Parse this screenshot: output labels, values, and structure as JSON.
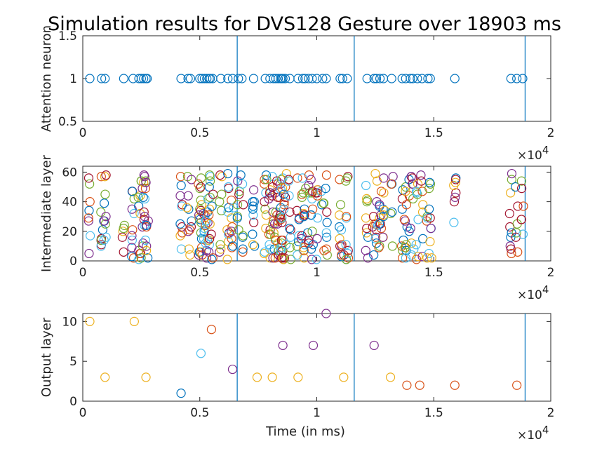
{
  "title": "Simulation results for DVS128 Gesture over 18903 ms",
  "palette": [
    "#0072BD",
    "#D95319",
    "#EDB120",
    "#7E2F8E",
    "#77AC30",
    "#4DBEEE",
    "#A2142F"
  ],
  "chart_data": [
    {
      "type": "scatter",
      "ylabel": "Attention neuron",
      "xlabel": "",
      "xlim": [
        0,
        20000
      ],
      "ylim": [
        0.5,
        1.5
      ],
      "x_ticks": [
        "0",
        "0.5",
        "1",
        "1.5",
        "2"
      ],
      "y_ticks": [
        "0.5",
        "1",
        "1.5"
      ],
      "x_exponent": "×10",
      "x_exponent_power": "4",
      "vlines": [
        6600,
        11600,
        18903
      ],
      "series": [
        {
          "color": "#0072BD",
          "x": [
            300,
            800,
            950,
            1750,
            2150,
            2400,
            2500,
            2600,
            2700,
            2750,
            4200,
            4500,
            4600,
            5000,
            5100,
            5200,
            5300,
            5400,
            5450,
            5550,
            5900,
            6200,
            6400,
            6650,
            6800,
            7300,
            7800,
            8000,
            8150,
            8250,
            8350,
            8450,
            8500,
            8550,
            8650,
            8850,
            9200,
            9400,
            9500,
            9650,
            9800,
            10000,
            10250,
            10400,
            11000,
            11100,
            11300,
            12150,
            12450,
            12550,
            12700,
            12850,
            13200,
            13650,
            13800,
            14000,
            14100,
            14300,
            14500,
            14750,
            14850,
            15900,
            18300,
            18550,
            18800
          ],
          "y": [
            1,
            1,
            1,
            1,
            1,
            1,
            1,
            1,
            1,
            1,
            1,
            1,
            1,
            1,
            1,
            1,
            1,
            1,
            1,
            1,
            1,
            1,
            1,
            1,
            1,
            1,
            1,
            1,
            1,
            1,
            1,
            1,
            1,
            1,
            1,
            1,
            1,
            1,
            1,
            1,
            1,
            1,
            1,
            1,
            1,
            1,
            1,
            1,
            1,
            1,
            1,
            1,
            1,
            1,
            1,
            1,
            1,
            1,
            1,
            1,
            1,
            1,
            1,
            1,
            1
          ]
        }
      ]
    },
    {
      "type": "scatter",
      "ylabel": "Intermediate layer",
      "xlabel": "",
      "xlim": [
        0,
        20000
      ],
      "ylim": [
        0,
        64
      ],
      "x_ticks": [
        "0",
        "0.5",
        "1",
        "1.5",
        "2"
      ],
      "y_ticks": [
        "0",
        "20",
        "40",
        "60"
      ],
      "x_exponent": "×10",
      "x_exponent_power": "4",
      "vlines": [
        6600,
        11600,
        18903
      ],
      "x": [
        300,
        800,
        950,
        1750,
        2150,
        2400,
        2500,
        2600,
        2700,
        2750,
        4200,
        4500,
        4600,
        5000,
        5100,
        5200,
        5300,
        5400,
        5450,
        5550,
        5900,
        6200,
        6400,
        6650,
        6800,
        7300,
        7800,
        8000,
        8150,
        8250,
        8350,
        8450,
        8500,
        8550,
        8650,
        8850,
        9200,
        9400,
        9500,
        9650,
        9800,
        10000,
        10250,
        10400,
        11000,
        11100,
        11300,
        12150,
        12450,
        12550,
        12700,
        12850,
        13200,
        13650,
        13800,
        14000,
        14100,
        14300,
        14500,
        14750,
        14850,
        15900,
        18300,
        18550,
        18800
      ]
    },
    {
      "type": "scatter",
      "ylabel": "Output layer",
      "xlabel": "Time (in ms)",
      "xlim": [
        0,
        20000
      ],
      "ylim": [
        0,
        11
      ],
      "x_ticks": [
        "0",
        "0.5",
        "1",
        "1.5",
        "2"
      ],
      "y_ticks": [
        "0",
        "5",
        "10"
      ],
      "x_exponent": "×10",
      "x_exponent_power": "4",
      "vlines": [
        6600,
        11600,
        18903
      ],
      "points": [
        {
          "x": 300,
          "y": 10,
          "color": "#EDB120"
        },
        {
          "x": 950,
          "y": 3,
          "color": "#EDB120"
        },
        {
          "x": 2200,
          "y": 10,
          "color": "#EDB120"
        },
        {
          "x": 2700,
          "y": 3,
          "color": "#EDB120"
        },
        {
          "x": 4200,
          "y": 1,
          "color": "#0072BD"
        },
        {
          "x": 5050,
          "y": 6,
          "color": "#4DBEEE"
        },
        {
          "x": 5500,
          "y": 9,
          "color": "#D95319"
        },
        {
          "x": 6400,
          "y": 4,
          "color": "#7E2F8E"
        },
        {
          "x": 7450,
          "y": 3,
          "color": "#EDB120"
        },
        {
          "x": 8100,
          "y": 3,
          "color": "#EDB120"
        },
        {
          "x": 8550,
          "y": 7,
          "color": "#7E2F8E"
        },
        {
          "x": 9200,
          "y": 3,
          "color": "#EDB120"
        },
        {
          "x": 9850,
          "y": 7,
          "color": "#7E2F8E"
        },
        {
          "x": 10400,
          "y": 11,
          "color": "#7E2F8E"
        },
        {
          "x": 11150,
          "y": 3,
          "color": "#EDB120"
        },
        {
          "x": 12450,
          "y": 7,
          "color": "#7E2F8E"
        },
        {
          "x": 13150,
          "y": 3,
          "color": "#EDB120"
        },
        {
          "x": 13850,
          "y": 2,
          "color": "#D95319"
        },
        {
          "x": 14400,
          "y": 2,
          "color": "#D95319"
        },
        {
          "x": 15900,
          "y": 2,
          "color": "#D95319"
        },
        {
          "x": 18550,
          "y": 2,
          "color": "#D95319"
        }
      ]
    }
  ]
}
